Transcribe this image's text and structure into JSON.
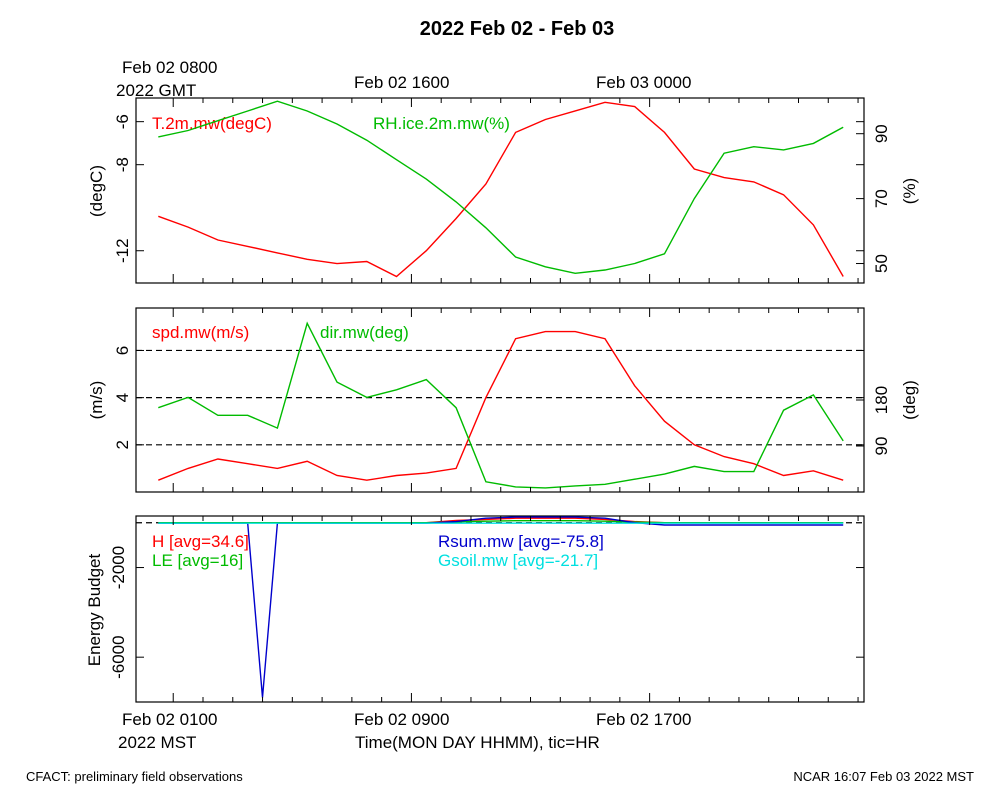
{
  "title": "2022 Feb 02 - Feb 03",
  "top_time_axis": {
    "labels": [
      "Feb 02 0800",
      "Feb 02 1600",
      "Feb 03 0000"
    ],
    "sublabel": "2022 GMT"
  },
  "bottom_time_axis": {
    "labels": [
      "Feb 02 0100",
      "Feb 02 0900",
      "Feb 02 1700"
    ],
    "sublabel": "2022 MST",
    "xlabel": "Time(MON DAY HHMM), tic=HR"
  },
  "footer": {
    "left": "CFACT: preliminary field observations",
    "right": "NCAR 16:07 Feb 03 2022 MST"
  },
  "colors": {
    "red": "#ff0000",
    "green": "#00bb00",
    "blue": "#0000cc",
    "cyan": "#00e0e0"
  },
  "chart_data": [
    {
      "type": "line",
      "panel": "temperature-humidity",
      "x_hours_mst": [
        -0.5,
        0.5,
        1.5,
        2.5,
        3.5,
        4.5,
        5.5,
        6.5,
        7.5,
        8.5,
        9.5,
        10.5,
        11.5,
        12.5,
        13.5,
        14.5,
        15.5,
        16.5,
        17.5,
        18.5,
        19.5,
        20.5,
        21.5,
        22.5
      ],
      "ylabel_left": "(degC)",
      "ylabel_right": "(%)",
      "ylim_left": [
        -13.5,
        -4.9
      ],
      "ylim_right": [
        44,
        101
      ],
      "yticks_left": [
        "-6",
        "-8",
        "-12"
      ],
      "yticks_left_values": [
        -6,
        -8,
        -12
      ],
      "yticks_right": [
        "90",
        "70",
        "50"
      ],
      "yticks_right_values": [
        90,
        70,
        50
      ],
      "series": [
        {
          "name": "T.2m.mw(degC)",
          "axis": "left",
          "color": "#ff0000",
          "values": [
            -10.4,
            -10.9,
            -11.5,
            -11.8,
            -12.1,
            -12.4,
            -12.6,
            -12.5,
            -13.2,
            -12.0,
            -10.5,
            -8.9,
            -6.5,
            -5.9,
            -5.5,
            -5.1,
            -5.3,
            -6.5,
            -8.2,
            -8.6,
            -8.8,
            -9.4,
            -10.8,
            -13.2
          ]
        },
        {
          "name": "RH.ice.2m.mw(%)",
          "axis": "right",
          "color": "#00bb00",
          "values": [
            89,
            91,
            94,
            97,
            100,
            97,
            93,
            88,
            82,
            76,
            69,
            61,
            52,
            49,
            47,
            48,
            50,
            53,
            70,
            84,
            86,
            85,
            87,
            92
          ]
        }
      ]
    },
    {
      "type": "line",
      "panel": "wind",
      "x_hours_mst": [
        -0.5,
        0.5,
        1.5,
        2.5,
        3.5,
        4.5,
        5.5,
        6.5,
        7.5,
        8.5,
        9.5,
        10.5,
        11.5,
        12.5,
        13.5,
        14.5,
        15.5,
        16.5,
        17.5,
        18.5,
        19.5,
        20.5,
        21.5,
        22.5
      ],
      "ylabel_left": "(m/s)",
      "ylabel_right": "(deg)",
      "ylim_left": [
        0,
        7.8
      ],
      "ylim_right": [
        0,
        360
      ],
      "yticks_left": [
        "2",
        "4",
        "6"
      ],
      "yticks_left_values": [
        2,
        4,
        6
      ],
      "yticks_right": [
        "90",
        "180"
      ],
      "yticks_right_values": [
        90,
        180
      ],
      "reference_lines": [
        2,
        4,
        6
      ],
      "series": [
        {
          "name": "spd.mw(m/s)",
          "axis": "left",
          "color": "#ff0000",
          "values": [
            0.5,
            1.0,
            1.4,
            1.2,
            1.0,
            1.3,
            0.7,
            0.5,
            0.7,
            0.8,
            1.0,
            4.0,
            6.5,
            6.8,
            6.8,
            6.5,
            4.5,
            3.0,
            2.0,
            1.5,
            1.2,
            0.7,
            0.9,
            0.5
          ]
        },
        {
          "name": "dir.mw(deg)",
          "axis": "right",
          "color": "#00bb00",
          "values": [
            165,
            185,
            150,
            150,
            125,
            330,
            215,
            185,
            200,
            220,
            165,
            20,
            10,
            8,
            12,
            15,
            25,
            35,
            50,
            40,
            40,
            160,
            190,
            100
          ]
        }
      ]
    },
    {
      "type": "line",
      "panel": "energy-budget",
      "x_hours_mst": [
        -0.5,
        0.5,
        1.5,
        2.5,
        3,
        3.5,
        4.5,
        5.5,
        6.5,
        7.5,
        8.5,
        9.5,
        10.5,
        11.5,
        12.5,
        13.5,
        14.5,
        15.5,
        16.5,
        17.5,
        18.5,
        19.5,
        20.5,
        21.5,
        22.5
      ],
      "ylabel_left": "Energy Budget",
      "ylim_left": [
        -8000,
        300
      ],
      "yticks_left": [
        "-2000",
        "-6000"
      ],
      "yticks_left_values": [
        -2000,
        -6000
      ],
      "series": [
        {
          "name": "H [avg=34.6]",
          "color": "#ff0000",
          "values": [
            0,
            0,
            0,
            0,
            0,
            0,
            0,
            0,
            0,
            0,
            0,
            100,
            150,
            200,
            200,
            200,
            150,
            50,
            0,
            0,
            0,
            0,
            0,
            0,
            0
          ]
        },
        {
          "name": "LE [avg=16]",
          "color": "#00bb00",
          "values": [
            0,
            0,
            0,
            0,
            0,
            0,
            0,
            0,
            0,
            0,
            0,
            40,
            70,
            90,
            90,
            90,
            70,
            30,
            0,
            0,
            0,
            0,
            0,
            0,
            0
          ]
        },
        {
          "name": "Rsum.mw [avg=-75.8]",
          "color": "#0000cc",
          "values": [
            -20,
            -20,
            -20,
            -20,
            -7800,
            -20,
            -20,
            -20,
            -20,
            -20,
            -20,
            50,
            200,
            250,
            250,
            250,
            200,
            0,
            -100,
            -100,
            -100,
            -100,
            -100,
            -100,
            -100
          ]
        },
        {
          "name": "Gsoil.mw [avg=-21.7]",
          "color": "#00e0e0",
          "values": [
            -20,
            -20,
            -20,
            -20,
            -20,
            -20,
            -20,
            -20,
            -20,
            -20,
            -20,
            -20,
            -20,
            -20,
            -20,
            -20,
            -20,
            -20,
            -20,
            -20,
            -20,
            -20,
            -20,
            -20,
            -20
          ]
        }
      ]
    }
  ]
}
